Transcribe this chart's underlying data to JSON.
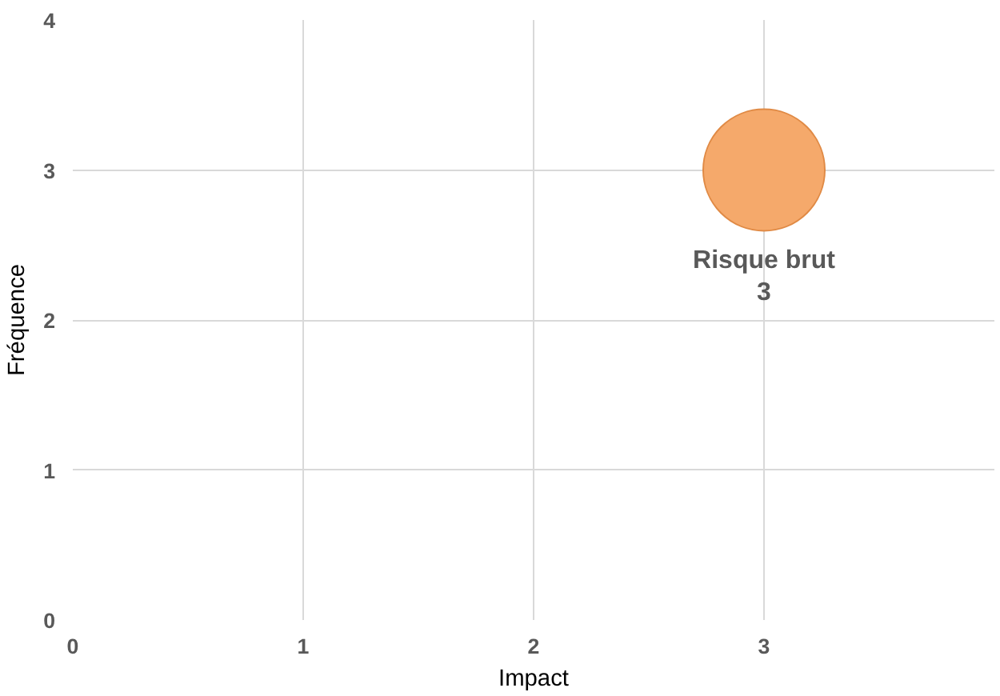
{
  "chart_data": {
    "type": "bubble",
    "xlabel": "Impact",
    "ylabel": "Fréquence",
    "x": [
      3
    ],
    "series": [
      {
        "name": "Risque brut",
        "color": "#f5a96b",
        "values": [
          3
        ],
        "sizes": [
          1
        ]
      }
    ],
    "data_labels": true,
    "xlim": [
      0,
      4
    ],
    "xticks": [
      0,
      1,
      2,
      3
    ],
    "ylim": [
      0,
      4
    ],
    "yticks": [
      0,
      1,
      2,
      3,
      4
    ],
    "grid": true
  }
}
